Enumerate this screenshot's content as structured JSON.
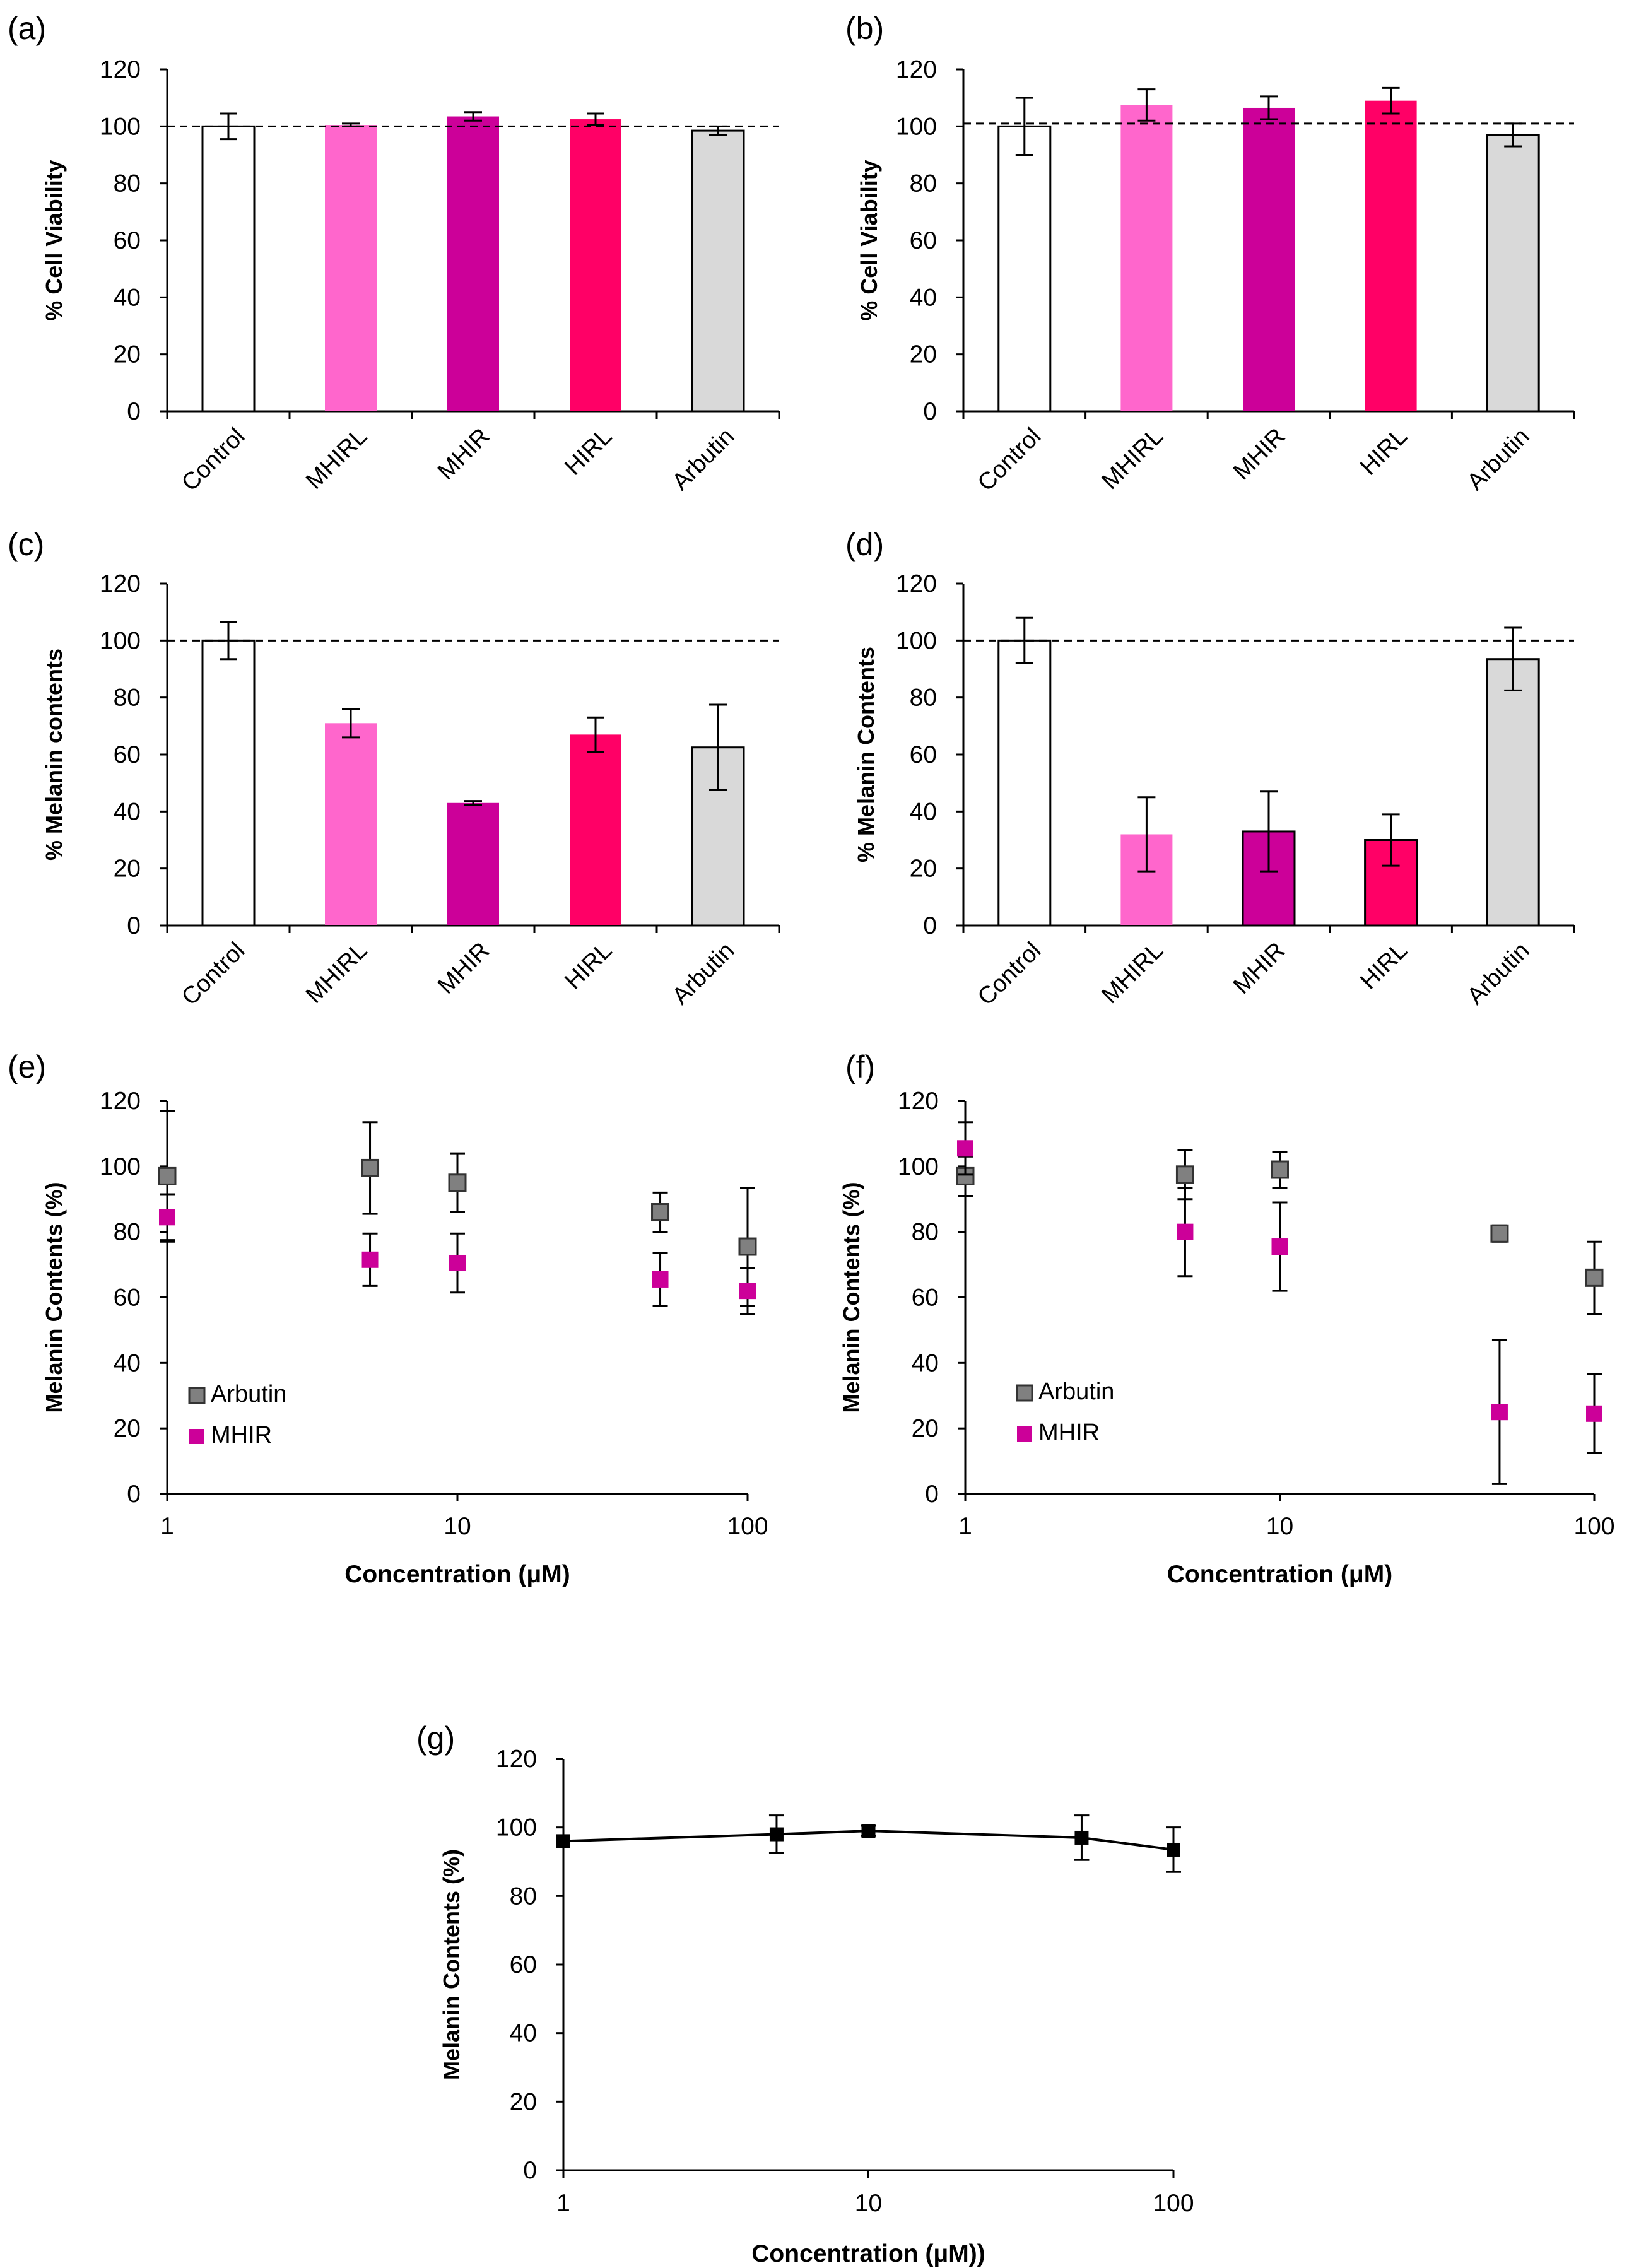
{
  "chart_data": [
    {
      "id": "a",
      "panel_label": "(a)",
      "type": "bar",
      "ylabel": "% Cell  Viability",
      "xlabel": "",
      "title": "",
      "ylim": [
        0,
        120
      ],
      "yticks": [
        0,
        20,
        40,
        60,
        80,
        100,
        120
      ],
      "categories": [
        "Control",
        "MHIRL",
        "MHIR",
        "HIRL",
        "Arbutin"
      ],
      "values": [
        100,
        100.5,
        103.5,
        102.5,
        98.5
      ],
      "errors": [
        4.5,
        0.5,
        1.5,
        2,
        1.5
      ],
      "colors": [
        "#ffffff",
        "#ff66cc",
        "#cc0099",
        "#ff0066",
        "#d9d9d9"
      ],
      "outlined": [
        true,
        false,
        false,
        false,
        true
      ],
      "reference_line": 100
    },
    {
      "id": "b",
      "panel_label": "(b)",
      "type": "bar",
      "ylabel": "% Cell Viability",
      "xlabel": "",
      "title": "",
      "ylim": [
        0,
        120
      ],
      "yticks": [
        0,
        20,
        40,
        60,
        80,
        100,
        120
      ],
      "categories": [
        "Control",
        "MHIRL",
        "MHIR",
        "HIRL",
        "Arbutin"
      ],
      "values": [
        100,
        107.5,
        106.5,
        109,
        97
      ],
      "errors": [
        10,
        5.5,
        4,
        4.5,
        4
      ],
      "colors": [
        "#ffffff",
        "#ff66cc",
        "#cc0099",
        "#ff0066",
        "#d9d9d9"
      ],
      "outlined": [
        true,
        false,
        false,
        false,
        true
      ],
      "reference_line": 101
    },
    {
      "id": "c",
      "panel_label": "(c)",
      "type": "bar",
      "ylabel": "% Melanin contents",
      "xlabel": "",
      "title": "",
      "ylim": [
        0,
        120
      ],
      "yticks": [
        0,
        20,
        40,
        60,
        80,
        100,
        120
      ],
      "categories": [
        "Control",
        "MHIRL",
        "MHIR",
        "HIRL",
        "Arbutin"
      ],
      "values": [
        100,
        71,
        43,
        67,
        62.5
      ],
      "errors": [
        6.5,
        5,
        0.7,
        6,
        15
      ],
      "colors": [
        "#ffffff",
        "#ff66cc",
        "#cc0099",
        "#ff0066",
        "#d9d9d9"
      ],
      "outlined": [
        true,
        false,
        false,
        false,
        true
      ],
      "reference_line": 100
    },
    {
      "id": "d",
      "panel_label": "(d)",
      "type": "bar",
      "ylabel": "% Melanin Contents",
      "xlabel": "",
      "title": "",
      "ylim": [
        0,
        120
      ],
      "yticks": [
        0,
        20,
        40,
        60,
        80,
        100,
        120
      ],
      "categories": [
        "Control",
        "MHIRL",
        "MHIR",
        "HIRL",
        "Arbutin"
      ],
      "values": [
        100,
        32,
        33,
        30,
        93.5
      ],
      "errors": [
        8,
        13,
        14,
        9,
        11
      ],
      "colors": [
        "#ffffff",
        "#ff66cc",
        "#cc0099",
        "#ff0066",
        "#d9d9d9"
      ],
      "outlined": [
        true,
        false,
        true,
        true,
        true
      ],
      "reference_line": 100
    },
    {
      "id": "e",
      "panel_label": "(e)",
      "type": "scatter",
      "xscale": "log",
      "xlim": [
        1,
        100
      ],
      "xticks": [
        1,
        10,
        100
      ],
      "ylim": [
        0,
        120
      ],
      "yticks": [
        0,
        20,
        40,
        60,
        80,
        100,
        120
      ],
      "xlabel": "Concentration (μM)",
      "ylabel": "Melanin Contents (%)",
      "title": "",
      "legend_position": "bottom-left",
      "series": [
        {
          "name": "Arbutin",
          "color": "#808080",
          "x": [
            1,
            5,
            10,
            50,
            100
          ],
          "values": [
            97,
            99.5,
            95,
            86,
            75.5
          ],
          "errors": [
            20,
            14,
            9,
            6,
            18
          ]
        },
        {
          "name": "MHIR",
          "color": "#cc0099",
          "x": [
            1,
            5,
            10,
            50,
            100
          ],
          "values": [
            84.5,
            71.5,
            70.5,
            65.5,
            62
          ],
          "errors": [
            7,
            8,
            9,
            8,
            7
          ]
        }
      ]
    },
    {
      "id": "f",
      "panel_label": "(f)",
      "type": "scatter",
      "xscale": "log",
      "xlim": [
        1,
        100
      ],
      "xticks": [
        1,
        10,
        100
      ],
      "ylim": [
        0,
        120
      ],
      "yticks": [
        0,
        20,
        40,
        60,
        80,
        100,
        120
      ],
      "xlabel": "Concentration (μM)",
      "ylabel": "Melanin Contents (%)",
      "title": "",
      "legend_position": "bottom-left",
      "series": [
        {
          "name": "Arbutin",
          "color": "#808080",
          "x": [
            1,
            5,
            10,
            50,
            100
          ],
          "values": [
            97,
            97.5,
            99,
            79.5,
            66
          ],
          "errors": [
            6,
            7.5,
            5.5,
            2.5,
            11
          ]
        },
        {
          "name": "MHIR",
          "color": "#cc0099",
          "x": [
            1,
            5,
            10,
            50,
            100
          ],
          "values": [
            105.5,
            80,
            75.5,
            25,
            24.5
          ],
          "errors": [
            8,
            13.5,
            13.5,
            22,
            12
          ]
        }
      ]
    },
    {
      "id": "g",
      "panel_label": "(g)",
      "type": "line",
      "xscale": "log",
      "xlim": [
        1,
        100
      ],
      "xticks": [
        1,
        10,
        100
      ],
      "ylim": [
        0,
        120
      ],
      "yticks": [
        0,
        20,
        40,
        60,
        80,
        100,
        120
      ],
      "xlabel": "Concentration (μM))",
      "ylabel": "Melanin Contents (%)",
      "title": "",
      "series": [
        {
          "name": "",
          "color": "#000000",
          "x": [
            1,
            5,
            10,
            50,
            100
          ],
          "values": [
            96,
            98,
            99,
            97,
            93.5
          ],
          "errors": [
            0,
            5.5,
            1.5,
            6.5,
            6.5
          ]
        }
      ]
    }
  ]
}
